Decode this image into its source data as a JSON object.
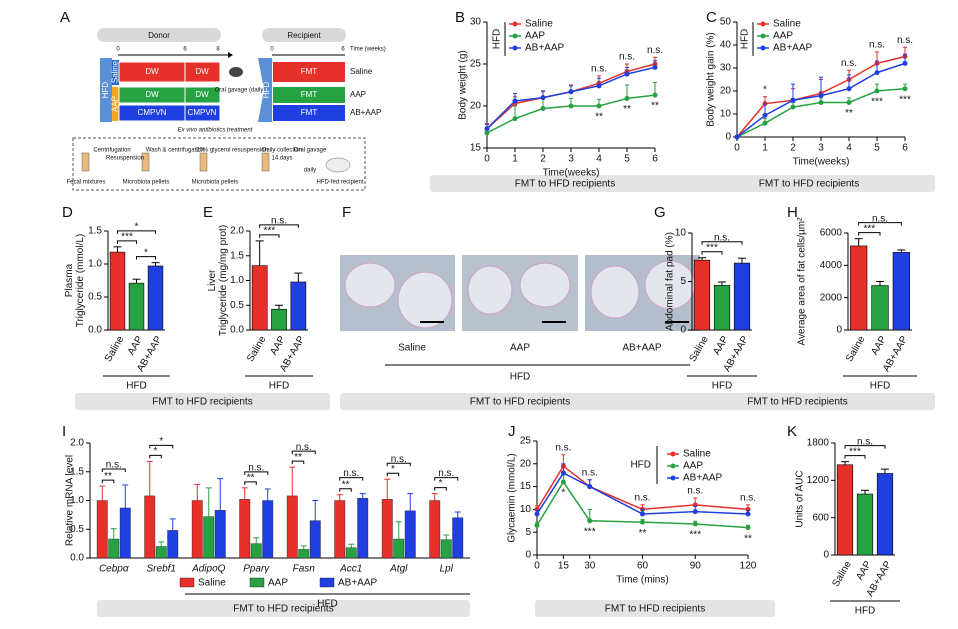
{
  "diagram": {
    "panel": "A",
    "donor": "Donor",
    "recipient": "Recipient",
    "donor_times": [
      0,
      6,
      8
    ],
    "time_label": "Time (weeks)",
    "recipient_times": [
      0,
      6
    ],
    "diet": "HFD",
    "donor_groups": [
      "Saline",
      "AAP"
    ],
    "donor_rows": [
      [
        "DW",
        "DW"
      ],
      [
        "DW",
        "DW"
      ],
      [
        "CMPVN",
        "CMPVN"
      ]
    ],
    "recipient_rows": [
      "FMT",
      "FMT",
      "FMT"
    ],
    "recipient_groups": [
      "Saline",
      "AAP",
      "AB+AAP"
    ],
    "gavage": "Oral gavage (daily)",
    "treatment": "Ex vivo antibiotics treatment",
    "steps": [
      "Centrifugation",
      "Resuspension",
      "Wash & centrifugation",
      "20% glycerol resuspension",
      "Daily collection",
      "14 days",
      "Oral gavage",
      "daily"
    ],
    "materials": [
      "Fecal mixtures",
      "Microbiota pellets",
      "Microbiota pellets",
      "HFD-fed recipient"
    ]
  },
  "images": {
    "panel": "F",
    "labels": [
      "Saline",
      "AAP",
      "AB+AAP"
    ],
    "group_label": "HFD"
  },
  "banners": [
    "FMT to HFD recipients",
    "FMT to HFD recipients",
    "FMT to HFD recipients",
    "FMT to HFD recipients",
    "FMT to HFD recipients",
    "FMT to HFD recipients",
    "FMT to HFD recipients"
  ],
  "chart_data": [
    {
      "type": "line",
      "panel": "B",
      "ylabel": "Body weight (g)",
      "xlabel": "Time(weeks)",
      "legend_title": "HFD",
      "x": [
        0,
        1,
        2,
        3,
        4,
        5,
        6
      ],
      "xlim": [
        0,
        6
      ],
      "xticks": [
        0,
        1,
        2,
        3,
        4,
        5,
        6
      ],
      "ylim": [
        15,
        30
      ],
      "yticks": [
        15,
        20,
        25,
        30
      ],
      "series": [
        {
          "name": "Saline",
          "color": "#e8302a",
          "values": [
            17.3,
            20.3,
            21,
            21.7,
            22.7,
            24.1,
            25
          ],
          "errors": [
            0.6,
            0.8,
            0.7,
            0.8,
            0.9,
            0.9,
            0.8
          ]
        },
        {
          "name": "AAP",
          "color": "#27a243",
          "values": [
            16.8,
            18.5,
            19.7,
            20,
            20,
            20.9,
            21.3
          ],
          "errors": [
            0.5,
            1.5,
            1.2,
            0.9,
            0.8,
            1.6,
            1.5
          ]
        },
        {
          "name": "AB+AAP",
          "color": "#1f3fe0",
          "values": [
            17.3,
            20.6,
            21,
            21.7,
            22.4,
            23.8,
            24.6
          ],
          "errors": [
            0.5,
            0.9,
            0.8,
            0.7,
            0.9,
            0.8,
            0.8
          ]
        }
      ],
      "annotations": [
        {
          "x": 4,
          "text": "n.s.",
          "position": "above"
        },
        {
          "x": 5,
          "text": "n.s.",
          "position": "above"
        },
        {
          "x": 6,
          "text": "n.s.",
          "position": "above"
        },
        {
          "x": 4,
          "text": "**",
          "position": "below"
        },
        {
          "x": 5,
          "text": "**",
          "position": "below"
        },
        {
          "x": 6,
          "text": "**",
          "position": "below"
        }
      ]
    },
    {
      "type": "line",
      "panel": "C",
      "ylabel": "Body weight gain (%)",
      "xlabel": "Time(weeks)",
      "legend_title": "HFD",
      "x": [
        0,
        1,
        2,
        3,
        4,
        5,
        6
      ],
      "xlim": [
        0,
        6
      ],
      "xticks": [
        0,
        1,
        2,
        3,
        4,
        5,
        6
      ],
      "ylim": [
        0,
        50
      ],
      "yticks": [
        0,
        10,
        20,
        30,
        40,
        50
      ],
      "series": [
        {
          "name": "Saline",
          "color": "#e8302a",
          "values": [
            0,
            14.5,
            16,
            19,
            25,
            32,
            35
          ],
          "errors": [
            0,
            3,
            5,
            6,
            4,
            5,
            4
          ]
        },
        {
          "name": "AAP",
          "color": "#27a243",
          "values": [
            0,
            6,
            13,
            15,
            15,
            20,
            21
          ],
          "errors": [
            0,
            2,
            2,
            2,
            2,
            3,
            2
          ]
        },
        {
          "name": "AB+AAP",
          "color": "#1f3fe0",
          "values": [
            0,
            9.4,
            16,
            18,
            21,
            28,
            32
          ],
          "errors": [
            0,
            5,
            7,
            8,
            6,
            5,
            4
          ]
        }
      ],
      "annotations": [
        {
          "x": 1,
          "text": "*",
          "position": "above"
        },
        {
          "x": 4,
          "text": "n.s.",
          "position": "above"
        },
        {
          "x": 5,
          "text": "n.s.",
          "position": "above"
        },
        {
          "x": 6,
          "text": "n.s.",
          "position": "above"
        },
        {
          "x": 4,
          "text": "**",
          "position": "below"
        },
        {
          "x": 5,
          "text": "***",
          "position": "below"
        },
        {
          "x": 6,
          "text": "***",
          "position": "below"
        }
      ]
    },
    {
      "type": "bar",
      "panel": "D",
      "ylabel": [
        "Plasma",
        "Triglyceride (mmol/L)"
      ],
      "group_label": "HFD",
      "categories": [
        "Saline",
        "AAP",
        "AB+AAP"
      ],
      "values": [
        1.18,
        0.71,
        0.97
      ],
      "errors": [
        0.08,
        0.06,
        0.05
      ],
      "colors": [
        "#e8302a",
        "#27a243",
        "#1f3fe0"
      ],
      "ylim": [
        0,
        1.5
      ],
      "yticks": [
        {
          "value": 0,
          "label": "0.0"
        },
        0.5,
        {
          "value": 1,
          "label": "1.0"
        },
        1.5
      ],
      "comparisons": [
        {
          "from": 0,
          "to": 1,
          "label": "***"
        },
        {
          "from": 1,
          "to": 2,
          "label": "*"
        },
        {
          "from": 0,
          "to": 2,
          "label": "*"
        }
      ]
    },
    {
      "type": "bar",
      "panel": "E",
      "ylabel": [
        "Liver",
        "Triglyceride (mg/mg prot)"
      ],
      "group_label": "HFD",
      "categories": [
        "Saline",
        "AAP",
        "AB+AAP"
      ],
      "values": [
        1.3,
        0.42,
        0.97
      ],
      "errors": [
        0.5,
        0.08,
        0.18
      ],
      "colors": [
        "#e8302a",
        "#27a243",
        "#1f3fe0"
      ],
      "ylim": [
        0,
        2
      ],
      "yticks": [
        {
          "value": 0,
          "label": "0.0"
        },
        0.5,
        {
          "value": 1,
          "label": "1.0"
        },
        1.5,
        {
          "value": 2,
          "label": "2.0"
        }
      ],
      "comparisons": [
        {
          "from": 0,
          "to": 1,
          "label": "***"
        },
        {
          "from": 0,
          "to": 2,
          "label": "n.s."
        }
      ]
    },
    {
      "type": "bar",
      "panel": "G",
      "ylabel": "Abdominal fat pad (%)",
      "group_label": "HFD",
      "categories": [
        "Saline",
        "AAP",
        "AB+AAP"
      ],
      "values": [
        7.2,
        4.6,
        6.9
      ],
      "errors": [
        0.25,
        0.35,
        0.5
      ],
      "colors": [
        "#e8302a",
        "#27a243",
        "#1f3fe0"
      ],
      "ylim": [
        0,
        10
      ],
      "yticks": [
        0,
        5,
        10
      ],
      "comparisons": [
        {
          "from": 0,
          "to": 1,
          "label": "***"
        },
        {
          "from": 0,
          "to": 2,
          "label": "n.s."
        }
      ]
    },
    {
      "type": "bar",
      "panel": "H",
      "ylabel": "Average area of fat cells/µm²",
      "group_label": "HFD",
      "categories": [
        "Saline",
        "AAP",
        "AB+AAP"
      ],
      "values": [
        5200,
        2750,
        4800
      ],
      "errors": [
        450,
        250,
        150
      ],
      "colors": [
        "#e8302a",
        "#27a243",
        "#1f3fe0"
      ],
      "ylim": [
        0,
        6000
      ],
      "yticks": [
        0,
        2000,
        4000,
        6000
      ],
      "comparisons": [
        {
          "from": 0,
          "to": 1,
          "label": "***"
        },
        {
          "from": 0,
          "to": 2,
          "label": "n.s."
        }
      ]
    },
    {
      "type": "grouped_bar",
      "panel": "I",
      "ylabel": "Relative mRNA level",
      "group_label": "HFD",
      "categories": [
        "Cebpα",
        "Srebf1",
        "AdipoQ",
        "Pparγ",
        "Fasn",
        "Acc1",
        "Atgl",
        "Lpl"
      ],
      "ylim": [
        0,
        2
      ],
      "yticks": [
        {
          "value": 0,
          "label": "0.0"
        },
        0.5,
        {
          "value": 1,
          "label": "1.0"
        },
        1.5,
        {
          "value": 2,
          "label": "2.0"
        }
      ],
      "series": [
        {
          "name": "Saline",
          "color": "#e8302a",
          "values": [
            1.0,
            1.08,
            1.0,
            1.02,
            1.08,
            1.0,
            1.02,
            1.0
          ],
          "errors": [
            0.25,
            0.6,
            0.28,
            0.2,
            0.5,
            0.1,
            0.35,
            0.12
          ]
        },
        {
          "name": "AAP",
          "color": "#27a243",
          "values": [
            0.33,
            0.2,
            0.72,
            0.25,
            0.15,
            0.18,
            0.33,
            0.32
          ],
          "errors": [
            0.18,
            0.08,
            0.5,
            0.1,
            0.06,
            0.06,
            0.3,
            0.08
          ]
        },
        {
          "name": "AB+AAP",
          "color": "#1f3fe0",
          "values": [
            0.87,
            0.48,
            0.83,
            1.0,
            0.65,
            1.04,
            0.82,
            0.7
          ],
          "errors": [
            0.4,
            0.2,
            0.55,
            0.2,
            0.35,
            0.08,
            0.3,
            0.1
          ]
        }
      ],
      "comparisons": [
        {
          "category": 0,
          "from": 0,
          "to": 1,
          "label": "**"
        },
        {
          "category": 0,
          "from": 0,
          "to": 2,
          "label": "n.s."
        },
        {
          "category": 1,
          "from": 0,
          "to": 1,
          "label": "*"
        },
        {
          "category": 1,
          "from": 0,
          "to": 2,
          "label": "*"
        },
        {
          "category": 3,
          "from": 0,
          "to": 1,
          "label": "**"
        },
        {
          "category": 3,
          "from": 0,
          "to": 2,
          "label": "n.s."
        },
        {
          "category": 4,
          "from": 0,
          "to": 1,
          "label": "**"
        },
        {
          "category": 4,
          "from": 0,
          "to": 2,
          "label": "n.s."
        },
        {
          "category": 5,
          "from": 0,
          "to": 1,
          "label": "**"
        },
        {
          "category": 5,
          "from": 0,
          "to": 2,
          "label": "n.s."
        },
        {
          "category": 6,
          "from": 0,
          "to": 1,
          "label": "*"
        },
        {
          "category": 6,
          "from": 0,
          "to": 2,
          "label": "n.s."
        },
        {
          "category": 7,
          "from": 0,
          "to": 1,
          "label": "*"
        },
        {
          "category": 7,
          "from": 0,
          "to": 2,
          "label": "n.s."
        }
      ]
    },
    {
      "type": "line",
      "panel": "J",
      "ylabel": "Glycaemin (mmol/L)",
      "xlabel": "Time (mins)",
      "legend_title": "HFD",
      "x": [
        0,
        15,
        30,
        60,
        90,
        120
      ],
      "xlim": [
        0,
        120
      ],
      "xticks": [
        0,
        15,
        30,
        60,
        90,
        120
      ],
      "ylim": [
        0,
        25
      ],
      "yticks": [
        0,
        5,
        10,
        15,
        20,
        25
      ],
      "series": [
        {
          "name": "Saline",
          "color": "#e8302a",
          "values": [
            10,
            19.5,
            15,
            10,
            11,
            10
          ],
          "errors": [
            0.8,
            2.5,
            1.5,
            1,
            1.5,
            1
          ]
        },
        {
          "name": "AAP",
          "color": "#27a243",
          "values": [
            6.5,
            16,
            7.5,
            7.2,
            6.8,
            6
          ],
          "errors": [
            0.6,
            1.5,
            2.5,
            0.6,
            0.6,
            0.5
          ]
        },
        {
          "name": "AB+AAP",
          "color": "#1f3fe0",
          "values": [
            9,
            18,
            15,
            9,
            9.5,
            9
          ],
          "errors": [
            0.8,
            2,
            1.5,
            1,
            1.2,
            0.8
          ]
        }
      ],
      "annotations": [
        {
          "x": 15,
          "text": "n.s.",
          "position": "above"
        },
        {
          "x": 30,
          "text": "n.s.",
          "position": "above"
        },
        {
          "x": 60,
          "text": "n.s.",
          "position": "above"
        },
        {
          "x": 90,
          "text": "n.s.",
          "position": "above"
        },
        {
          "x": 120,
          "text": "n.s.",
          "position": "above"
        },
        {
          "x": 15,
          "text": "*",
          "position": "below"
        },
        {
          "x": 30,
          "text": "***",
          "position": "below"
        },
        {
          "x": 60,
          "text": "**",
          "position": "below"
        },
        {
          "x": 90,
          "text": "***",
          "position": "below"
        },
        {
          "x": 120,
          "text": "**",
          "position": "below"
        }
      ]
    },
    {
      "type": "bar",
      "panel": "K",
      "ylabel": "Units of AUC",
      "group_label": "HFD",
      "categories": [
        "Saline",
        "AAP",
        "AB+AAP"
      ],
      "values": [
        1450,
        980,
        1310
      ],
      "errors": [
        50,
        60,
        70
      ],
      "colors": [
        "#e8302a",
        "#27a243",
        "#1f3fe0"
      ],
      "ylim": [
        0,
        1800
      ],
      "yticks": [
        0,
        600,
        1200,
        1800
      ],
      "comparisons": [
        {
          "from": 0,
          "to": 1,
          "label": "***"
        },
        {
          "from": 0,
          "to": 2,
          "label": "n.s."
        }
      ]
    }
  ]
}
